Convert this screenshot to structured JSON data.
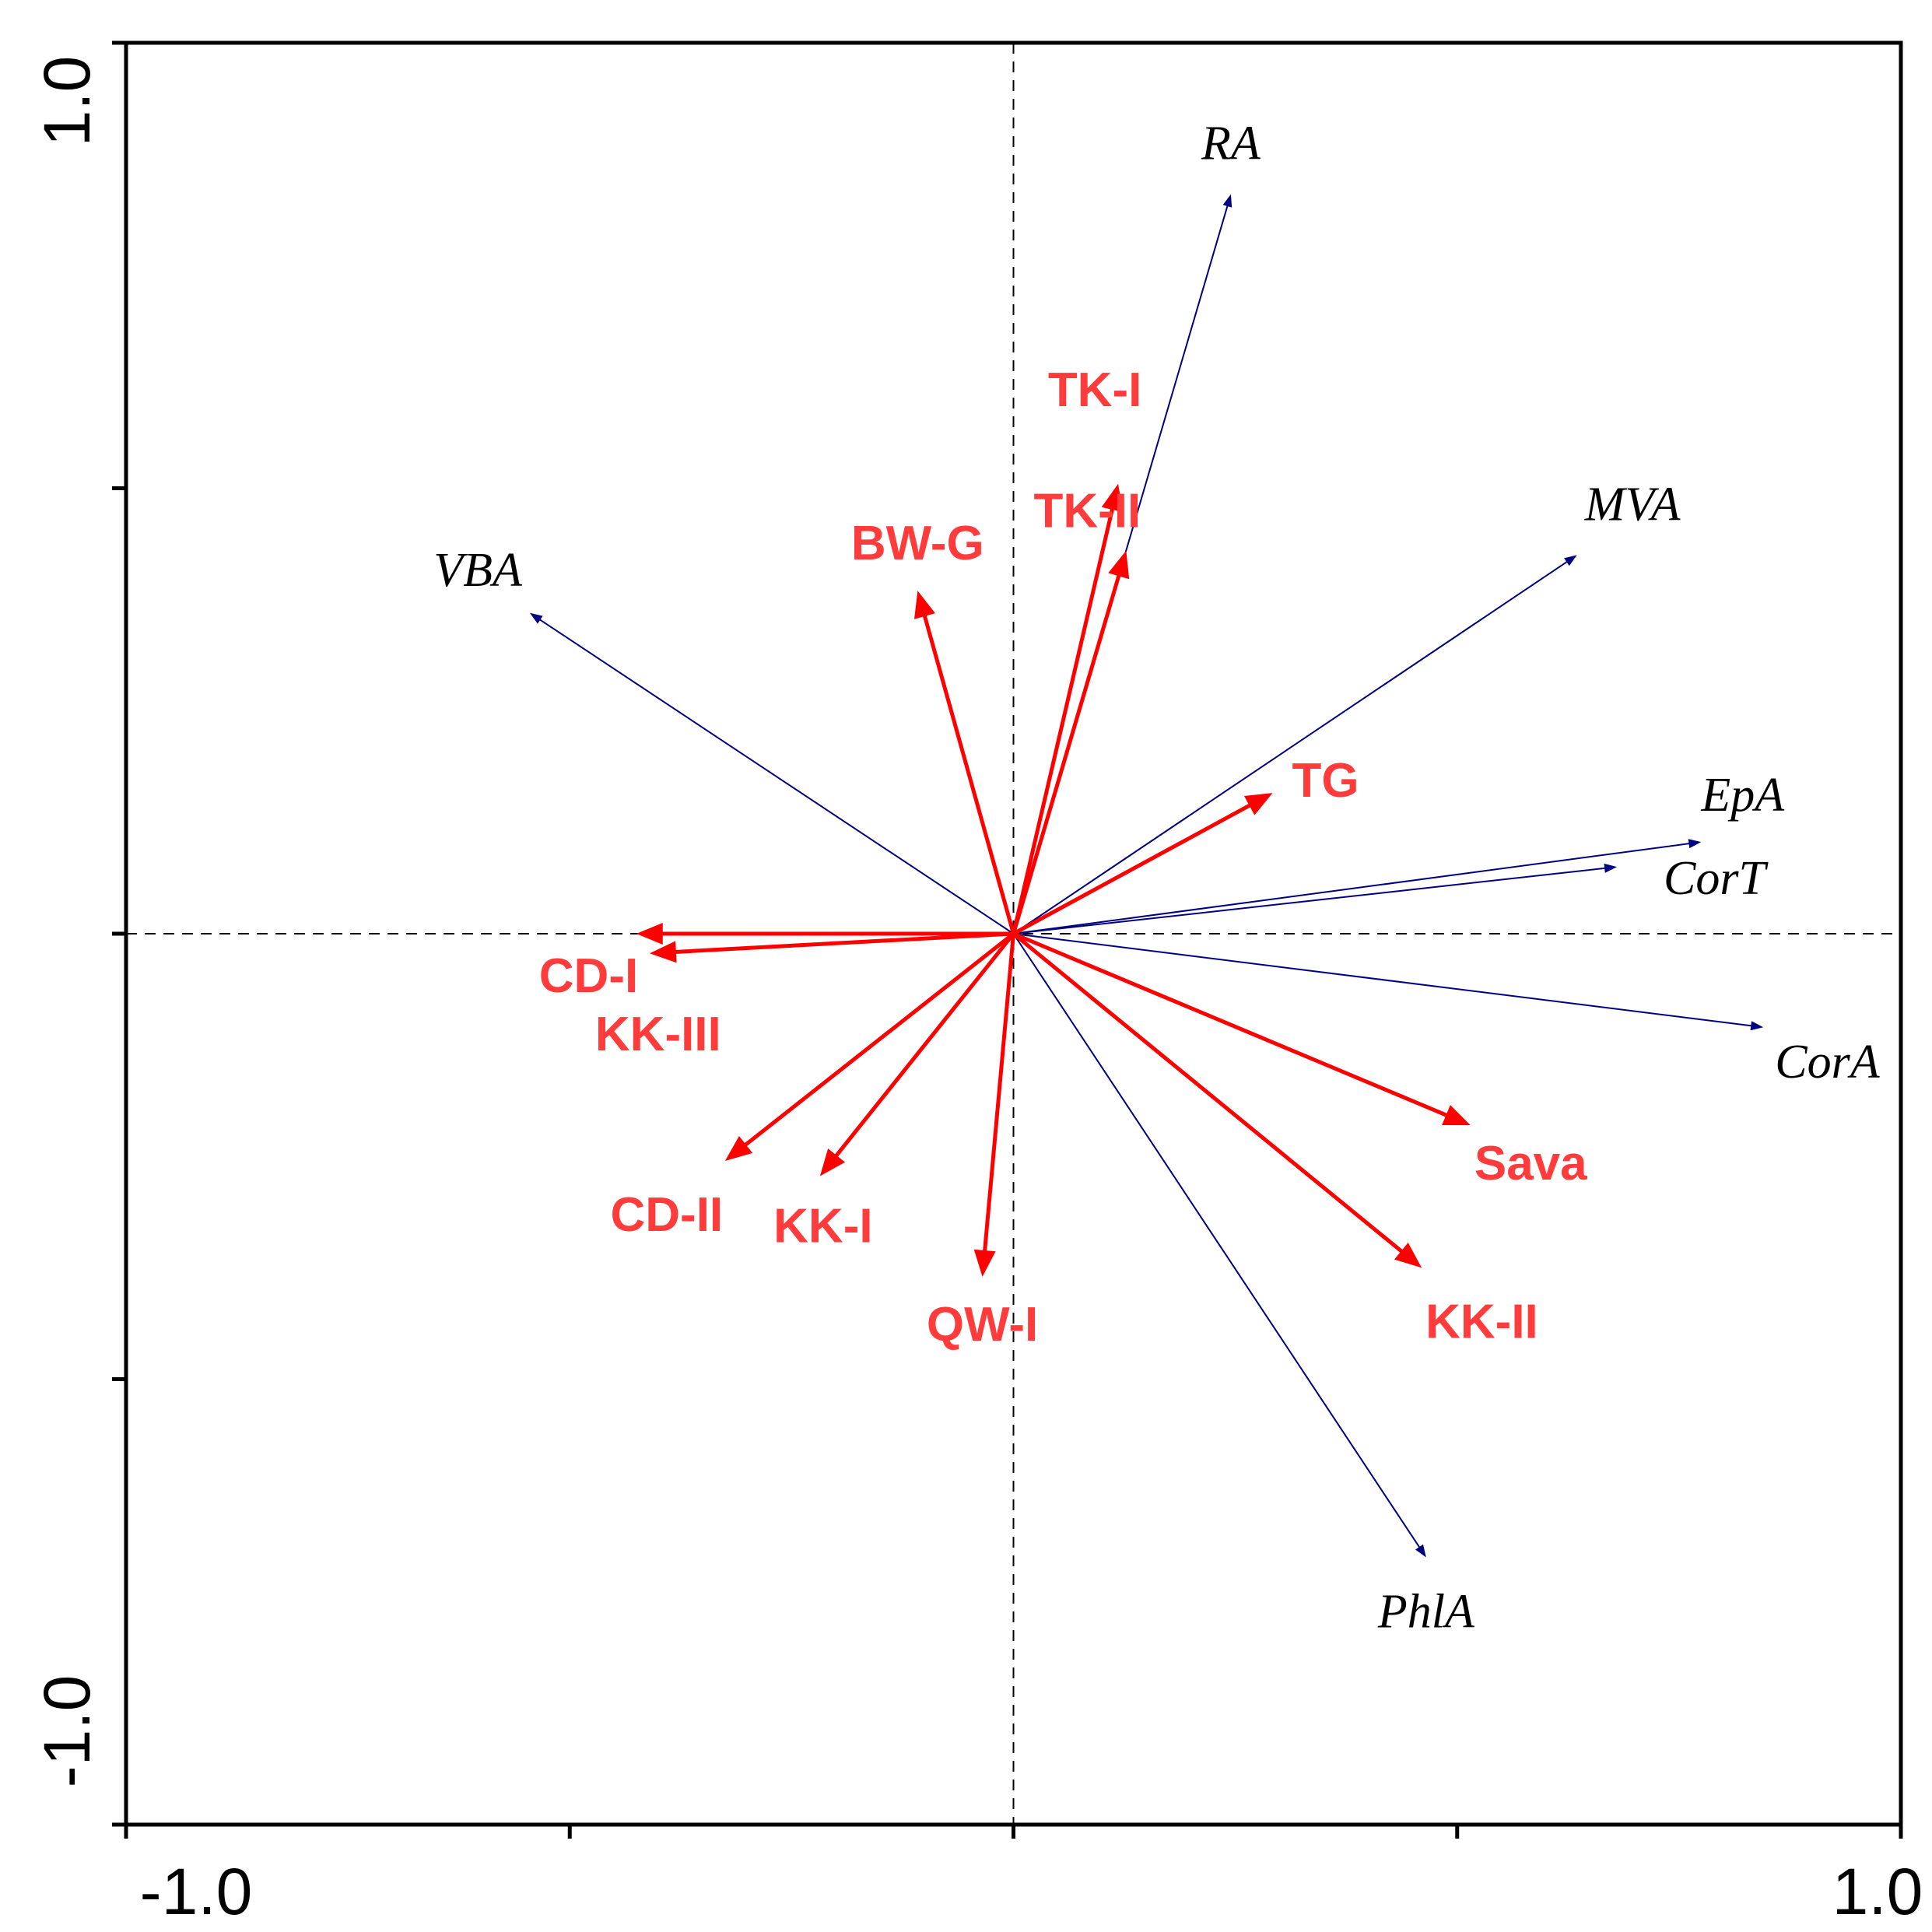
{
  "chart_data": {
    "type": "biplot",
    "title": "",
    "xlabel": "",
    "ylabel": "",
    "xlim": [
      -1.0,
      1.0
    ],
    "ylim": [
      -1.0,
      1.0
    ],
    "x_tick_labels": [
      "-1.0",
      "1.0"
    ],
    "y_tick_labels": [
      "1.0",
      "-1.0"
    ],
    "x_ticks": [
      -1.0,
      -0.5,
      0.0,
      0.5,
      1.0
    ],
    "y_ticks": [
      -1.0,
      -0.5,
      0.0,
      0.5,
      1.0
    ],
    "grid": false,
    "reference_lines": "dashed lines at x=0 and y=0",
    "env_color": "#000080",
    "site_color": "#ff0000",
    "site_label_color": "#ff3b3b",
    "env_vectors": [
      {
        "label": "RA",
        "x": 0.245,
        "y": 0.83
      },
      {
        "label": "MVA",
        "x": 0.635,
        "y": 0.425
      },
      {
        "label": "VBA",
        "x": -0.545,
        "y": 0.36
      },
      {
        "label": "EpA",
        "x": 0.775,
        "y": 0.103
      },
      {
        "label": "CorT",
        "x": 0.68,
        "y": 0.075
      },
      {
        "label": "CorA",
        "x": 0.845,
        "y": -0.105
      },
      {
        "label": "PhlA",
        "x": 0.465,
        "y": -0.7
      }
    ],
    "site_vectors": [
      {
        "label": "TK-I",
        "x": 0.118,
        "y": 0.505
      },
      {
        "label": "TK-II",
        "x": 0.127,
        "y": 0.43
      },
      {
        "label": "BW-G",
        "x": -0.108,
        "y": 0.385
      },
      {
        "label": "TG",
        "x": 0.292,
        "y": 0.158
      },
      {
        "label": "CD-I",
        "x": -0.425,
        "y": 0.0
      },
      {
        "label": "KK-III",
        "x": -0.41,
        "y": -0.022
      },
      {
        "label": "CD-II",
        "x": -0.325,
        "y": -0.255
      },
      {
        "label": "KK-I",
        "x": -0.218,
        "y": -0.272
      },
      {
        "label": "QW-I",
        "x": -0.035,
        "y": -0.385
      },
      {
        "label": "Sava",
        "x": 0.515,
        "y": -0.215
      },
      {
        "label": "KK-II",
        "x": 0.46,
        "y": -0.375
      }
    ]
  }
}
